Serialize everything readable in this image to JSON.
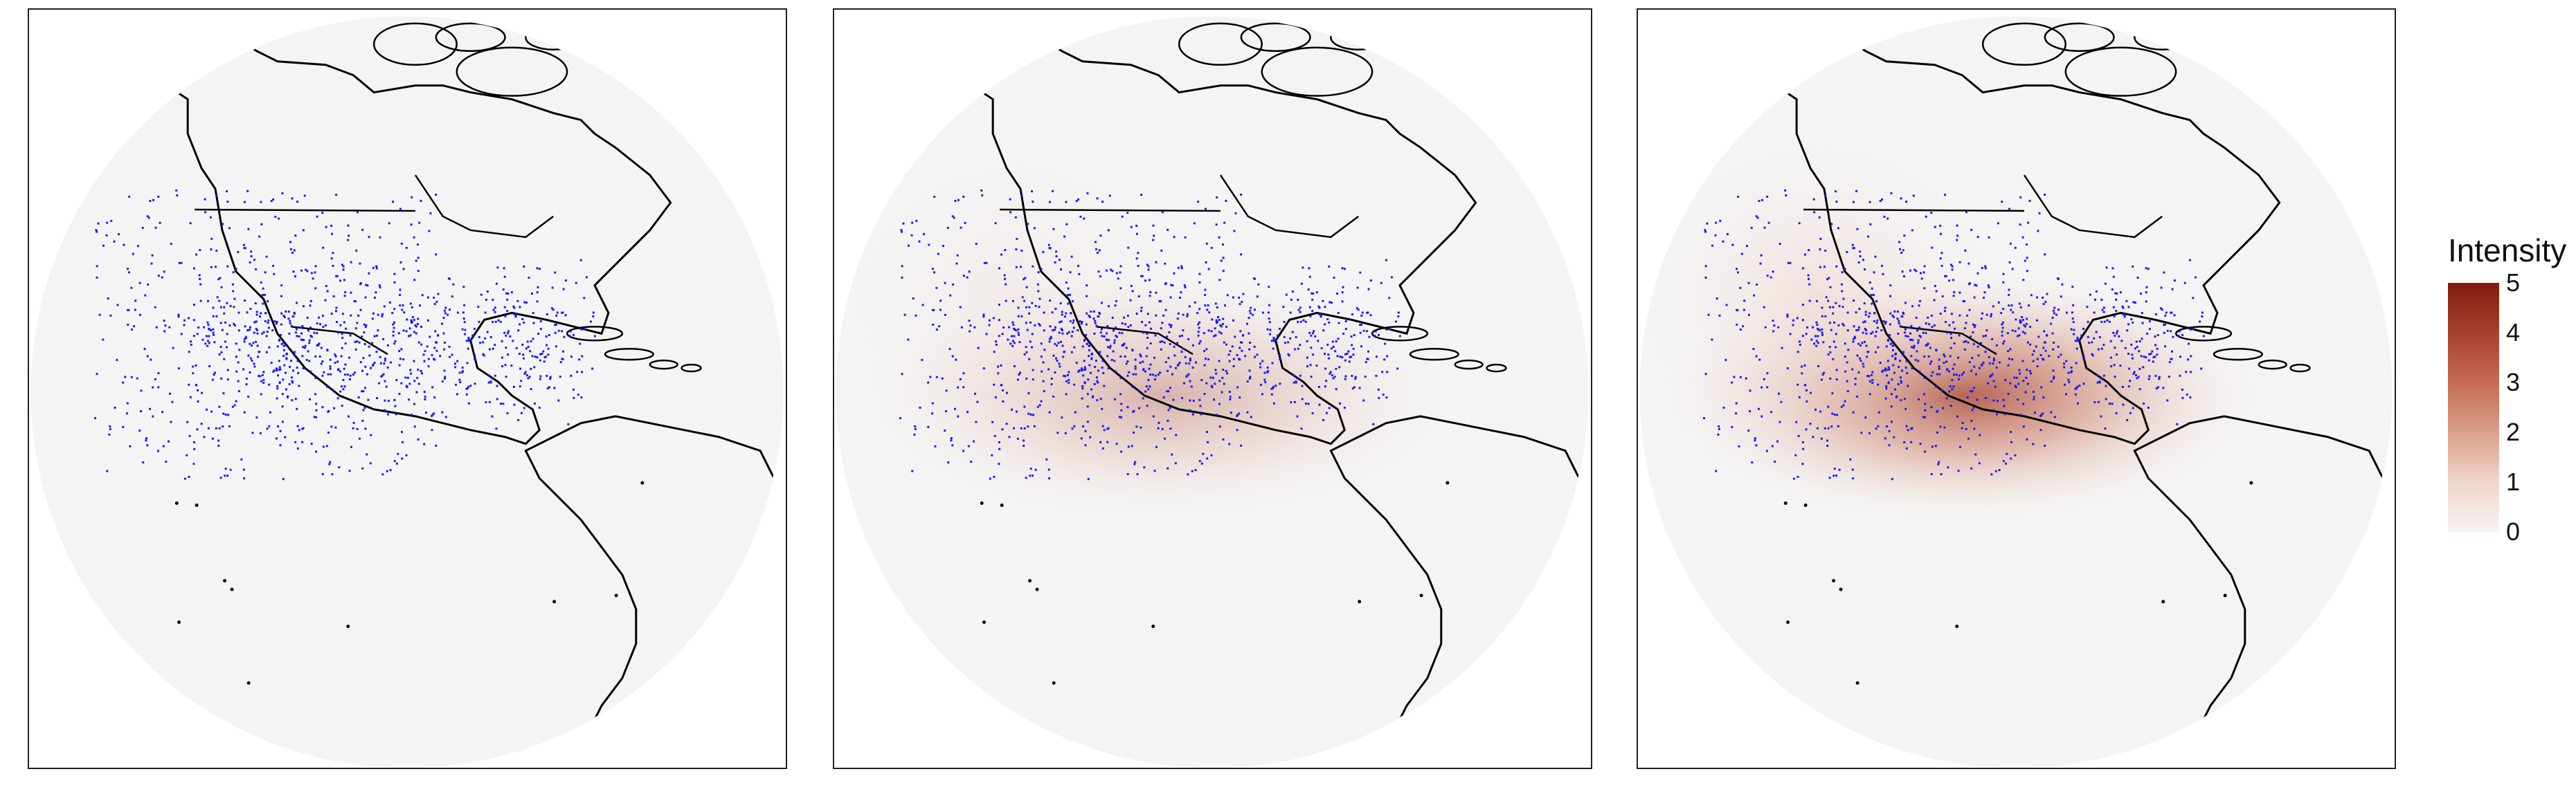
{
  "panels": [
    {
      "id": "panel-1",
      "intensity_scale": 0.0
    },
    {
      "id": "panel-2",
      "intensity_scale": 0.45
    },
    {
      "id": "panel-3",
      "intensity_scale": 1.0
    }
  ],
  "legend": {
    "title": "Intensity",
    "ticks": [
      "5",
      "4",
      "3",
      "2",
      "1",
      "0"
    ],
    "colors": {
      "low": "#f6f4f3",
      "high": "#821b0f"
    }
  },
  "points_color": "#1a1aff"
}
